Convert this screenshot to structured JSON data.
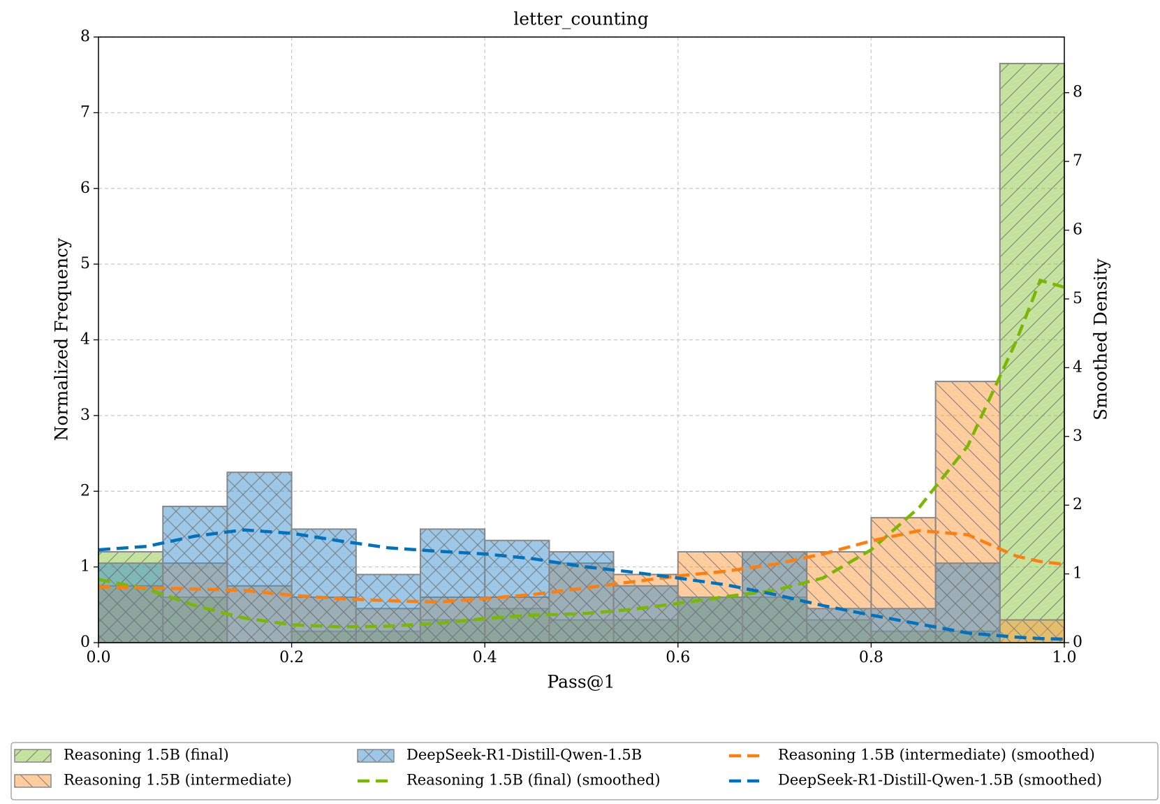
{
  "chart_data": {
    "type": "histogram",
    "title": "letter_counting",
    "x_label": "Pass@1",
    "y_label": "Normalized Frequency",
    "y2_label": "Smoothed Density",
    "bins": [
      0,
      0.0667,
      0.1333,
      0.2,
      0.2667,
      0.3333,
      0.4,
      0.4667,
      0.5333,
      0.6,
      0.6667,
      0.7333,
      0.8,
      0.8667,
      0.9333,
      1
    ],
    "x": [
      0,
      0.05,
      0.1,
      0.15,
      0.2,
      0.25,
      0.3,
      0.35,
      0.4,
      0.45,
      0.5,
      0.55,
      0.6,
      0.65,
      0.7,
      0.75,
      0.8,
      0.85,
      0.9,
      0.95,
      0.975,
      1
    ],
    "series": [
      {
        "name": "Reasoning 1.5B (final)",
        "type": "histogram",
        "color": "#8cc63f",
        "hatch": "/",
        "values": [
          1.2,
          0.6,
          0,
          0.15,
          0.15,
          0.3,
          0.45,
          0.3,
          0.3,
          0.6,
          0.6,
          0.3,
          0.15,
          0.15,
          7.65
        ]
      },
      {
        "name": "Reasoning 1.5B (intermediate)",
        "type": "histogram",
        "color": "#ff9a3c",
        "hatch": "\\",
        "values": [
          0.75,
          1.05,
          0.75,
          0.6,
          0.45,
          0.6,
          0.6,
          1.05,
          0.9,
          1.2,
          1.2,
          1.2,
          1.65,
          3.45,
          0.3
        ]
      },
      {
        "name": "DeepSeek-R1-Distill-Qwen-1.5B",
        "type": "histogram",
        "color": "#3a8fd0",
        "hatch": "x",
        "values": [
          1.05,
          1.8,
          2.25,
          1.5,
          0.9,
          1.5,
          1.35,
          1.2,
          0.75,
          0.6,
          1.2,
          0.45,
          0.45,
          1.05,
          0
        ]
      },
      {
        "name": "Reasoning 1.5B (final) (smoothed)",
        "type": "line",
        "axis": "y2",
        "color": "#7ab800",
        "values": [
          0.92,
          0.78,
          0.54,
          0.36,
          0.26,
          0.23,
          0.24,
          0.28,
          0.35,
          0.4,
          0.42,
          0.48,
          0.57,
          0.67,
          0.76,
          0.94,
          1.35,
          1.97,
          2.86,
          4.38,
          5.27,
          5.17
        ]
      },
      {
        "name": "Reasoning 1.5B (intermediate) (smoothed)",
        "type": "line",
        "axis": "y2",
        "color": "#ff7f0e",
        "values": [
          0.81,
          0.8,
          0.78,
          0.76,
          0.69,
          0.64,
          0.61,
          0.59,
          0.64,
          0.7,
          0.79,
          0.88,
          0.97,
          1.04,
          1.14,
          1.29,
          1.48,
          1.63,
          1.57,
          1.26,
          1.18,
          1.14
        ]
      },
      {
        "name": "DeepSeek-R1-Distill-Qwen-1.5B (smoothed)",
        "type": "line",
        "axis": "y2",
        "color": "#0072bd",
        "values": [
          1.35,
          1.4,
          1.55,
          1.64,
          1.59,
          1.48,
          1.38,
          1.33,
          1.29,
          1.22,
          1.11,
          1.03,
          0.94,
          0.84,
          0.7,
          0.54,
          0.4,
          0.27,
          0.14,
          0.08,
          0.06,
          0.05
        ]
      }
    ],
    "xlim": [
      0,
      1
    ],
    "xticks": [
      {
        "value": 0,
        "label": "0.0"
      },
      0.2,
      0.4,
      0.6,
      0.8,
      {
        "value": 1,
        "label": "1.0"
      }
    ],
    "ylim": [
      0,
      8
    ],
    "yticks": [
      0,
      1,
      2,
      3,
      4,
      5,
      6,
      7,
      8
    ],
    "y2lim": [
      0,
      8.81
    ],
    "y2ticks": [
      0,
      1,
      2,
      3,
      4,
      5,
      6,
      7,
      8
    ],
    "grid": true,
    "legend": "bottom"
  }
}
